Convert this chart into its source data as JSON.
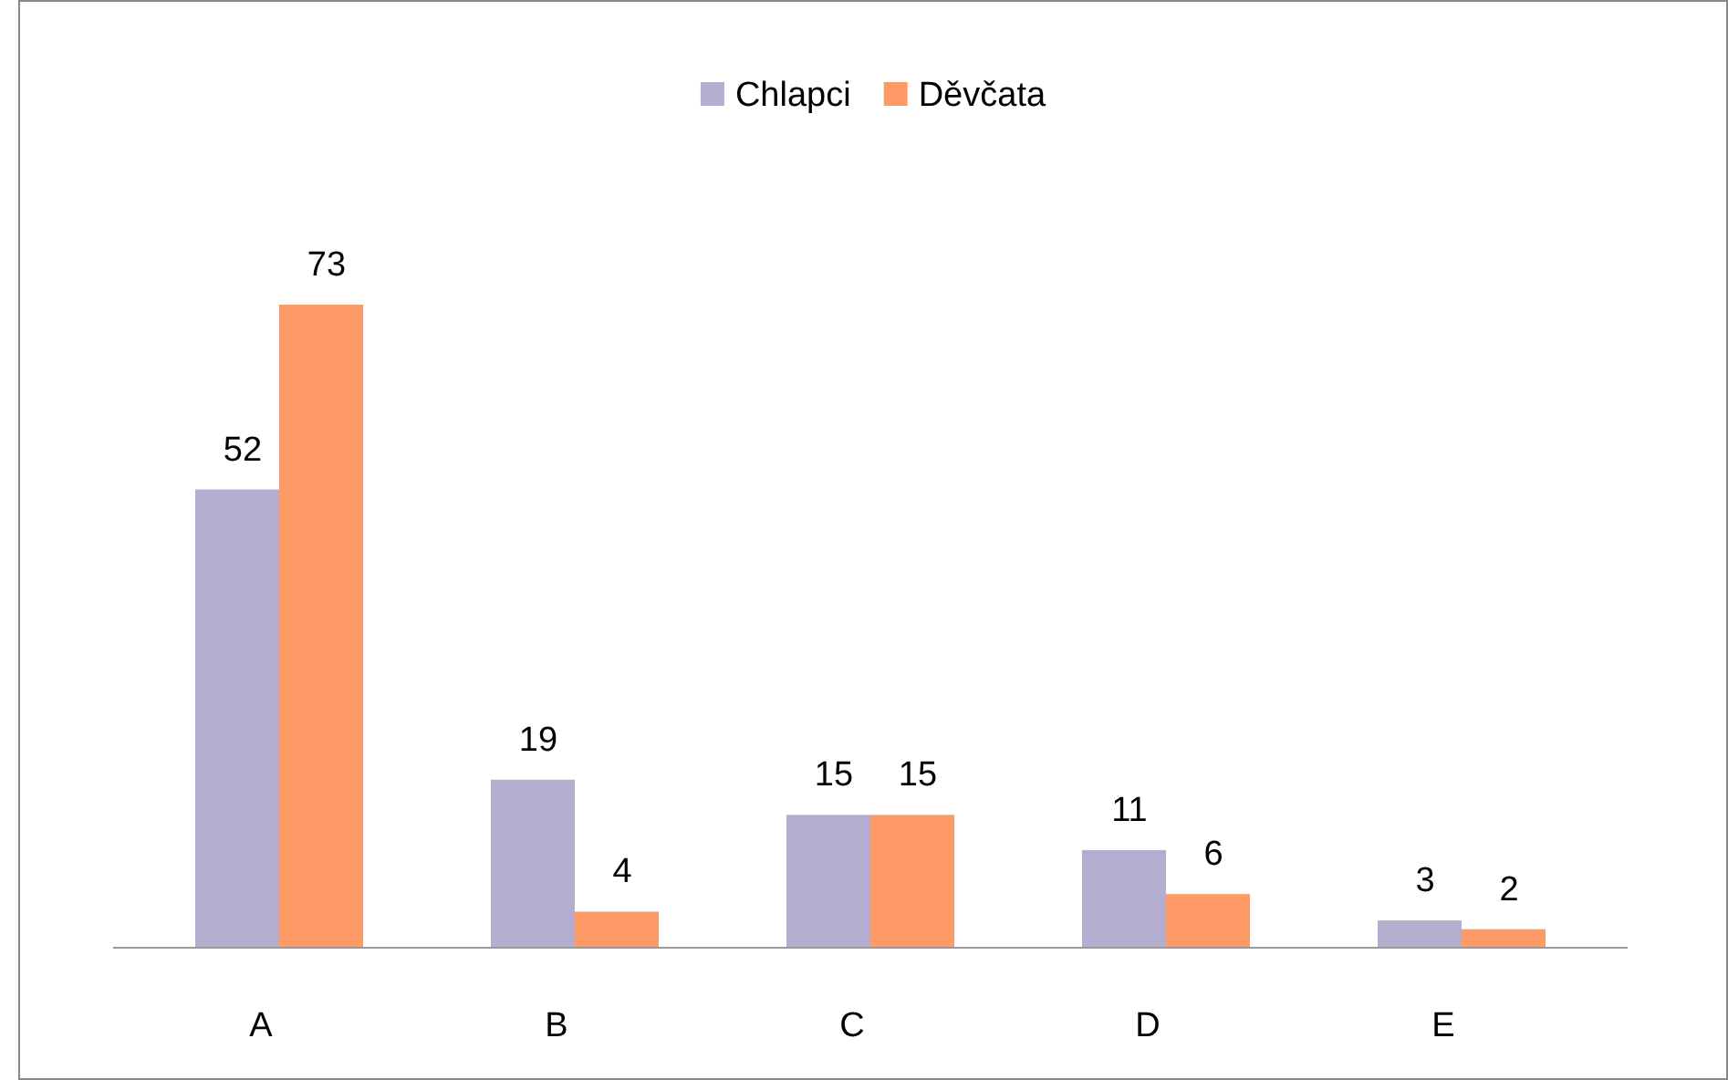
{
  "chart_data": {
    "type": "bar",
    "categories": [
      "A",
      "B",
      "C",
      "D",
      "E"
    ],
    "series": [
      {
        "name": "Chlapci",
        "color": "#b3aed0",
        "values": [
          52,
          19,
          15,
          11,
          3
        ]
      },
      {
        "name": "Děvčata",
        "color": "#ff9966",
        "values": [
          73,
          4,
          15,
          6,
          2
        ]
      }
    ],
    "data_labels": true,
    "legend": "top"
  }
}
